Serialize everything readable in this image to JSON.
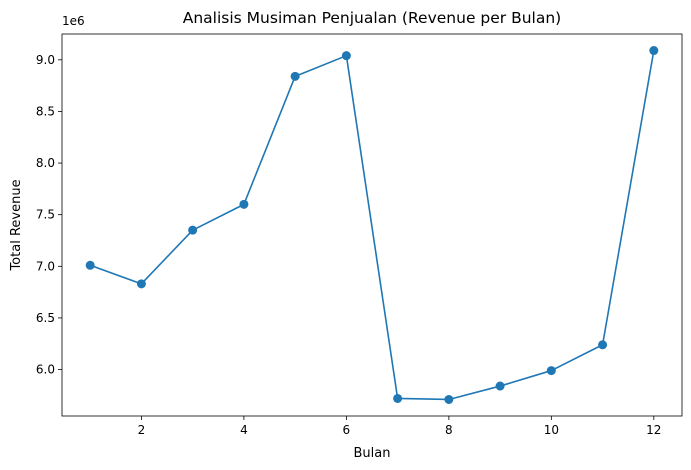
{
  "chart_data": {
    "type": "line",
    "title": "Analisis Musiman Penjualan (Revenue per Bulan)",
    "xlabel": "Bulan",
    "ylabel": "Total Revenue",
    "y_offset_label": "1e6",
    "xlim": [
      0.45,
      12.55
    ],
    "ylim": [
      5.55,
      9.25
    ],
    "x_ticks": [
      2,
      4,
      6,
      8,
      10,
      12
    ],
    "y_ticks": [
      6.0,
      6.5,
      7.0,
      7.5,
      8.0,
      8.5,
      9.0
    ],
    "x_tick_labels": [
      "2",
      "4",
      "6",
      "8",
      "10",
      "12"
    ],
    "y_tick_labels": [
      "6.0",
      "6.5",
      "7.0",
      "7.5",
      "8.0",
      "8.5",
      "9.0"
    ],
    "grid": false,
    "marker": "circle",
    "color": "#1f77b4",
    "x": [
      1,
      2,
      3,
      4,
      5,
      6,
      7,
      8,
      9,
      10,
      11,
      12
    ],
    "values": [
      7.01,
      6.83,
      7.35,
      7.6,
      8.84,
      9.04,
      5.72,
      5.71,
      5.84,
      5.99,
      6.24,
      9.09
    ]
  }
}
